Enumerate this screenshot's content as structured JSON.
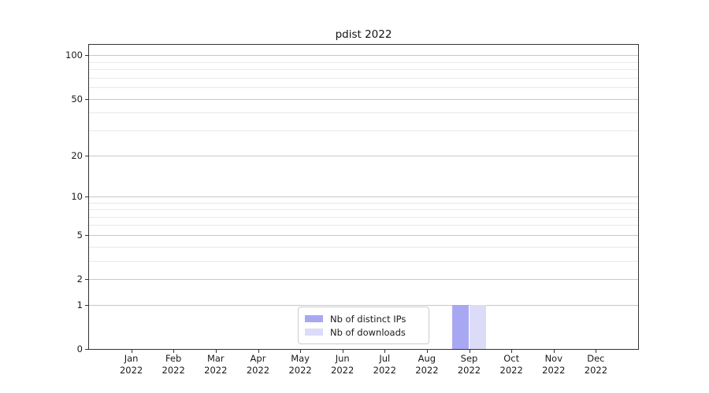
{
  "chart_data": {
    "type": "bar",
    "title": "pdist 2022",
    "categories": [
      "Jan",
      "Feb",
      "Mar",
      "Apr",
      "May",
      "Jun",
      "Jul",
      "Aug",
      "Sep",
      "Oct",
      "Nov",
      "Dec"
    ],
    "x_tick_year": "2022",
    "series": [
      {
        "name": "Nb of distinct IPs",
        "color": "#a8a8f2",
        "values": [
          0,
          0,
          0,
          0,
          0,
          0,
          0,
          0,
          1,
          0,
          0,
          0
        ]
      },
      {
        "name": "Nb of downloads",
        "color": "#dcdcf9",
        "values": [
          0,
          0,
          0,
          0,
          0,
          0,
          0,
          0,
          1,
          0,
          0,
          0
        ]
      }
    ],
    "y_scale": "log1p",
    "ylim": [
      0,
      118
    ],
    "y_major_ticks": [
      0,
      1,
      2,
      5,
      10,
      20,
      50,
      100
    ],
    "y_minor_gridlines": [
      3,
      4,
      6,
      7,
      8,
      9,
      30,
      40,
      60,
      70,
      80,
      90
    ],
    "legend_position": "lower center",
    "grid": "horizontal",
    "colors": {
      "major_grid": "#c8c8c8",
      "minor_grid": "#e9e9e9",
      "spine": "#333333",
      "text": "#1a1a1a",
      "legend_border": "#cccccc"
    }
  }
}
